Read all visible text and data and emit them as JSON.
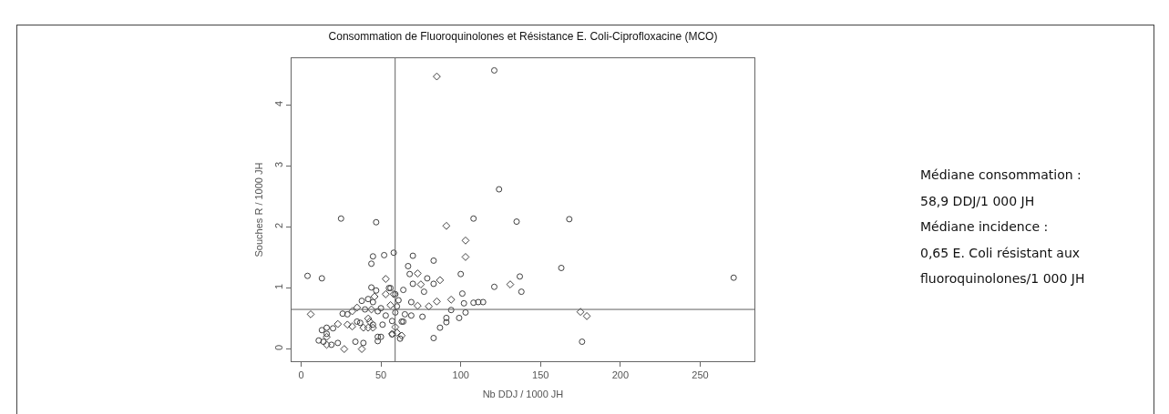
{
  "chart_data": {
    "type": "scatter",
    "title": "Consommation de Fluoroquinolones et Résistance E. Coli-Ciprofloxacine (MCO)",
    "xlabel": "Nb DDJ / 1000 JH",
    "ylabel": "Souches R / 1000 JH",
    "xlim": [
      -6,
      284
    ],
    "xticks": [
      0,
      50,
      100,
      150,
      200,
      250
    ],
    "ylim": [
      -0.2,
      4.77
    ],
    "yticks": [
      0,
      1,
      2,
      3,
      4
    ],
    "series": [
      {
        "marker": "circle",
        "color": "#404040",
        "x": [
          121,
          4,
          13,
          25,
          47,
          45,
          44,
          52,
          58,
          70,
          67,
          68,
          70,
          83,
          77,
          79,
          83,
          100,
          101,
          108,
          121,
          102,
          103,
          99,
          94,
          91,
          91,
          87,
          83,
          76,
          69,
          65,
          64,
          69,
          64,
          61,
          60,
          59,
          59,
          56,
          55,
          57,
          57,
          47,
          44,
          42,
          38,
          40,
          35,
          37,
          39,
          34,
          48,
          50,
          48,
          45,
          51,
          48,
          50,
          45,
          26,
          29,
          20,
          16,
          16,
          13,
          11,
          14,
          19,
          23,
          62,
          63,
          53,
          124,
          135,
          168,
          163,
          137,
          138,
          271,
          176,
          108,
          111,
          114
        ],
        "values": [
          4.57,
          1.2,
          1.16,
          2.14,
          2.08,
          1.52,
          1.4,
          1.54,
          1.58,
          1.53,
          1.36,
          1.23,
          1.07,
          1.45,
          0.94,
          1.16,
          1.07,
          1.23,
          0.91,
          2.14,
          1.02,
          0.75,
          0.6,
          0.51,
          0.64,
          0.51,
          0.44,
          0.35,
          0.18,
          0.53,
          0.55,
          0.57,
          0.45,
          0.77,
          0.97,
          0.8,
          0.7,
          0.9,
          0.6,
          1.0,
          1.0,
          0.46,
          0.24,
          0.96,
          1.01,
          0.82,
          0.79,
          0.65,
          0.45,
          0.43,
          0.1,
          0.12,
          0.2,
          0.2,
          0.13,
          0.4,
          0.4,
          0.62,
          0.67,
          0.77,
          0.58,
          0.57,
          0.34,
          0.35,
          0.25,
          0.31,
          0.14,
          0.12,
          0.07,
          0.1,
          0.17,
          0.45,
          0.55,
          2.62,
          2.09,
          2.13,
          1.33,
          1.19,
          0.94,
          1.17,
          0.12,
          0.76,
          0.77,
          0.77
        ]
      },
      {
        "marker": "diamond",
        "color": "#404040",
        "x": [
          85,
          6,
          23,
          27,
          38,
          32,
          29,
          16,
          16,
          35,
          39,
          42,
          43,
          45,
          42,
          44,
          46,
          53,
          53,
          56,
          58,
          57,
          60,
          63,
          59,
          73,
          75,
          73,
          87,
          91,
          103,
          103,
          94,
          85,
          80,
          32,
          131,
          175,
          179
        ],
        "values": [
          4.47,
          0.57,
          0.41,
          0.0,
          0.0,
          0.37,
          0.4,
          0.2,
          0.07,
          0.68,
          0.35,
          0.35,
          0.45,
          0.35,
          0.5,
          0.65,
          0.86,
          1.15,
          0.9,
          0.72,
          0.9,
          0.25,
          0.27,
          0.22,
          0.36,
          1.24,
          1.06,
          0.71,
          1.13,
          2.02,
          1.78,
          1.51,
          0.81,
          0.78,
          0.7,
          0.62,
          1.06,
          0.61,
          0.54
        ]
      }
    ],
    "ref_lines": [
      {
        "axis": "x",
        "value": 58.9,
        "color": "#606060"
      },
      {
        "axis": "y",
        "value": 0.65,
        "color": "#606060"
      }
    ],
    "annotations": [
      "Médiane consommation :",
      "58,9 DDJ/1 000 JH",
      "Médiane incidence :",
      "0,65 E. Coli résistant aux",
      "fluoroquinolones/1 000 JH"
    ]
  }
}
